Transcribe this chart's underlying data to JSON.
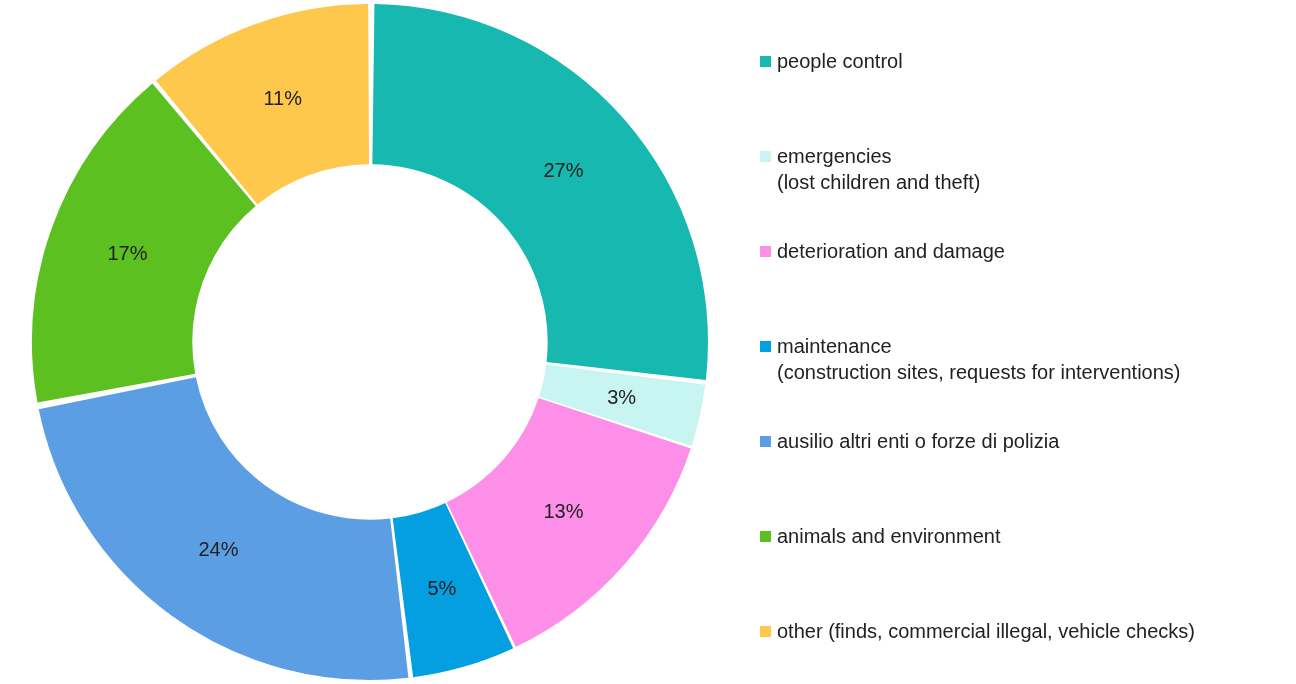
{
  "chart_data": {
    "type": "donut",
    "categories": [
      "people control",
      "emergencies\n(lost children and theft)",
      "deterioration and damage",
      "maintenance\n(construction sites, requests for interventions)",
      "ausilio altri enti o forze di polizia",
      "animals and environment",
      "other (finds, commercial illegal, vehicle checks)"
    ],
    "values": [
      27,
      3,
      13,
      5,
      24,
      17,
      11
    ],
    "value_labels": [
      "27%",
      "3%",
      "13%",
      "5%",
      "24%",
      "17%",
      "11%"
    ],
    "colors": [
      "#16b8b0",
      "#c8f5f2",
      "#fd8fe9",
      "#049fe0",
      "#5c9ee3",
      "#5cc120",
      "#fdc84c"
    ],
    "legend": "right"
  }
}
